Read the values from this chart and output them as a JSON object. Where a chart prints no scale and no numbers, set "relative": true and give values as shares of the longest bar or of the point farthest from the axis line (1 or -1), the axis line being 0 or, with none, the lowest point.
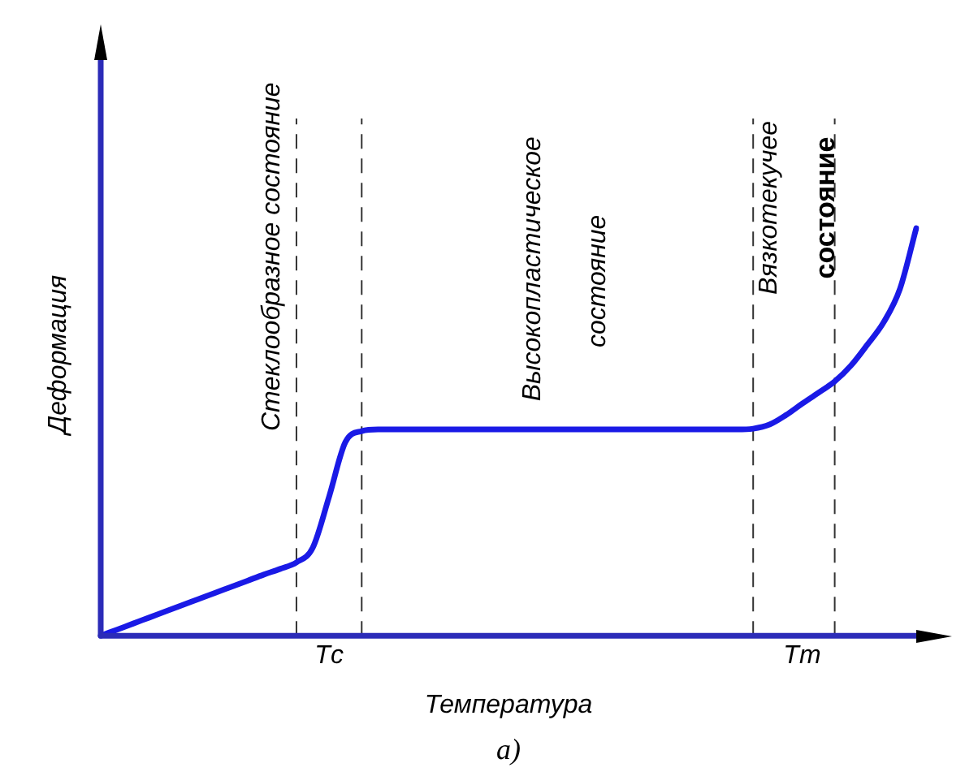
{
  "chart_data": {
    "type": "line",
    "relative": true,
    "xlabel": "Температура",
    "ylabel": "Деформация",
    "color": "#1a1ae6",
    "line_style": "solid",
    "marker": "none",
    "grid": false,
    "legend": false,
    "categories": [
      null,
      null,
      null,
      null,
      null,
      null,
      null,
      null,
      null,
      null,
      null,
      null,
      null,
      null,
      "Tс",
      null,
      null,
      null,
      null,
      null,
      null,
      null,
      null,
      null,
      null,
      null,
      null,
      null,
      null,
      null,
      null,
      null,
      null,
      null,
      null,
      null,
      null,
      null,
      null,
      null,
      null,
      null,
      null,
      "Tт",
      null,
      null,
      null,
      null,
      null,
      null,
      null
    ],
    "values": [
      0,
      0.015,
      0.03,
      0.045,
      0.06,
      0.075,
      0.09,
      0.105,
      0.12,
      0.135,
      0.15,
      0.164,
      0.18,
      0.216,
      0.341,
      0.475,
      0.502,
      0.506,
      0.506,
      0.506,
      0.506,
      0.506,
      0.506,
      0.506,
      0.506,
      0.506,
      0.506,
      0.506,
      0.506,
      0.506,
      0.506,
      0.506,
      0.506,
      0.506,
      0.506,
      0.506,
      0.506,
      0.506,
      0.506,
      0.506,
      0.508,
      0.518,
      0.541,
      0.569,
      0.596,
      0.624,
      0.663,
      0.714,
      0.769,
      0.851,
      1.0
    ],
    "annotations": [
      "Стеклообразное состояние",
      "Высокопластическое",
      "состояние",
      "Вязкотекучее",
      "состояние",
      "а)"
    ]
  }
}
